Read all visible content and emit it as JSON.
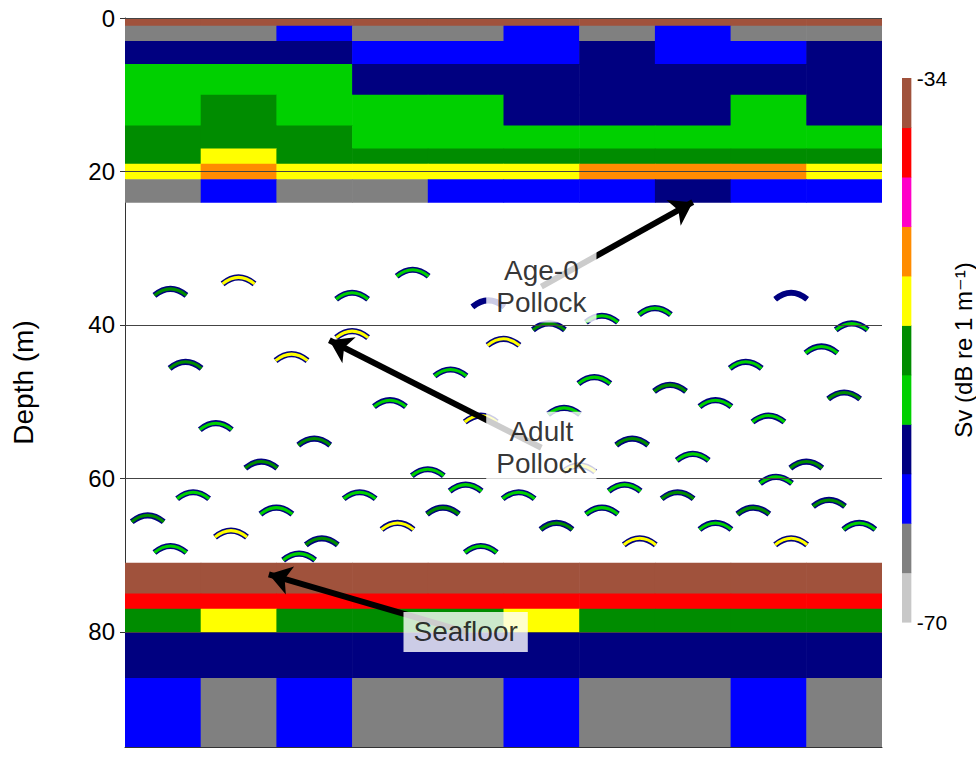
{
  "chart_data": {
    "type": "echogram",
    "ylabel": "Depth (m)",
    "xlim": [
      0,
      100
    ],
    "ylim": [
      0,
      95
    ],
    "yticks": [
      0,
      20,
      40,
      60,
      80
    ],
    "tick_labels": "y",
    "grid": true,
    "cells": {
      "x": [
        0,
        10,
        20,
        30,
        40,
        50,
        60,
        70,
        80,
        90,
        100
      ],
      "depth": [
        0,
        1,
        3,
        6,
        10,
        14,
        17,
        19,
        21,
        24,
        71,
        75,
        77,
        80,
        86,
        95
      ],
      "sv": [
        [
          -34,
          -34,
          -34,
          -34,
          -34,
          -34,
          -34,
          -34,
          -34,
          -34
        ],
        [
          -64,
          -66,
          -62,
          -64,
          -66,
          -63,
          -64,
          -62,
          -66,
          -64
        ],
        [
          -60,
          -58,
          -60,
          -62,
          -61,
          -62,
          -60,
          -61,
          -62,
          -60
        ],
        [
          -55,
          -54,
          -56,
          -57,
          -58,
          -60,
          -59,
          -60,
          -58,
          -59
        ],
        [
          -54,
          -53,
          -54,
          -55,
          -56,
          -57,
          -58,
          -57,
          -56,
          -57
        ],
        [
          -53,
          -52,
          -53,
          -54,
          -55,
          -55,
          -56,
          -54,
          -55,
          -55
        ],
        [
          -51,
          -50,
          -51,
          -52,
          -53,
          -52,
          -53,
          -51,
          -51,
          -52
        ],
        [
          -48,
          -47,
          -49,
          -49,
          -48,
          -49,
          -47,
          -46,
          -47,
          -48
        ],
        [
          -64,
          -63,
          -65,
          -64,
          -63,
          -62,
          -61,
          -60,
          -62,
          -63
        ],
        [
          null,
          null,
          null,
          null,
          null,
          null,
          null,
          null,
          null,
          null
        ],
        [
          -34,
          -34,
          -34,
          -34,
          -34,
          -34,
          -34,
          -34,
          -34,
          -34
        ],
        [
          -39,
          -38,
          -40,
          -39,
          -38,
          -39,
          -40,
          -39,
          -38,
          -39
        ],
        [
          -52,
          -50,
          -53,
          -51,
          -52,
          -50,
          -52,
          -51,
          -53,
          -52
        ],
        [
          -59,
          -60,
          -59,
          -58,
          -60,
          -59,
          -60,
          -59,
          -58,
          -60
        ],
        [
          -63,
          -64,
          -63,
          -65,
          -64,
          -63,
          -64,
          -65,
          -63,
          -64
        ]
      ]
    },
    "targets": {
      "x": [
        6,
        15,
        30,
        38,
        48,
        56,
        63,
        70,
        88,
        96,
        8,
        22,
        30,
        43,
        50,
        62,
        72,
        82,
        92,
        12,
        25,
        35,
        47,
        58,
        67,
        78,
        85,
        95,
        18,
        40,
        60,
        75,
        90,
        3,
        9,
        14,
        20,
        26,
        31,
        36,
        42,
        47,
        52,
        57,
        63,
        68,
        73,
        78,
        83,
        88,
        93,
        97,
        6,
        23,
        45,
        66,
        86
      ],
      "depth": [
        35.5,
        34,
        36,
        33,
        37,
        40,
        39,
        38,
        36,
        40,
        45,
        44,
        41,
        46,
        42,
        47,
        48,
        45,
        43,
        53,
        55,
        50,
        52,
        51,
        55,
        50,
        52,
        49,
        58,
        59,
        58.5,
        57,
        58,
        65,
        62,
        67,
        64,
        68,
        62,
        66,
        64,
        69,
        62,
        66,
        64,
        68,
        62,
        66,
        64,
        68,
        63,
        66,
        69,
        70,
        61,
        61,
        60
      ],
      "sv": [
        -52,
        -50,
        -56,
        -55,
        -57,
        -53,
        -56,
        -55,
        -57,
        -54,
        -52,
        -49,
        -50,
        -55,
        -48,
        -56,
        -53,
        -56,
        -55,
        -54,
        -53,
        -56,
        -49,
        -55,
        -53,
        -56,
        -54,
        -52,
        -51,
        -55,
        -50,
        -55,
        -53,
        -53,
        -55,
        -50,
        -54,
        -52,
        -55,
        -50,
        -53,
        -54,
        -55,
        -52,
        -54,
        -50,
        -53,
        -55,
        -51,
        -49,
        -53,
        -55,
        -54,
        -55,
        -56,
        -55,
        -56
      ]
    },
    "colorbar": {
      "label": "Sv (dB re 1 m⁻¹)",
      "range": [
        -70,
        -34
      ],
      "ticks": [
        -70,
        -34
      ],
      "colors": [
        "#c8c8c8",
        "#808080",
        "#0000ff",
        "#000080",
        "#00d000",
        "#008c00",
        "#ffff00",
        "#ff8c00",
        "#ff00c8",
        "#ff0000",
        "#a0523c"
      ]
    },
    "annotations": [
      {
        "text": "Age-0 Pollock",
        "xy": [
          75,
          24
        ],
        "xytext": [
          55,
          35
        ]
      },
      {
        "text": "Adult Pollock",
        "xy": [
          27,
          42
        ],
        "xytext": [
          55,
          56
        ]
      },
      {
        "text": "Seafloor",
        "xy": [
          19,
          72.5
        ],
        "xytext": [
          45,
          80
        ]
      }
    ]
  }
}
